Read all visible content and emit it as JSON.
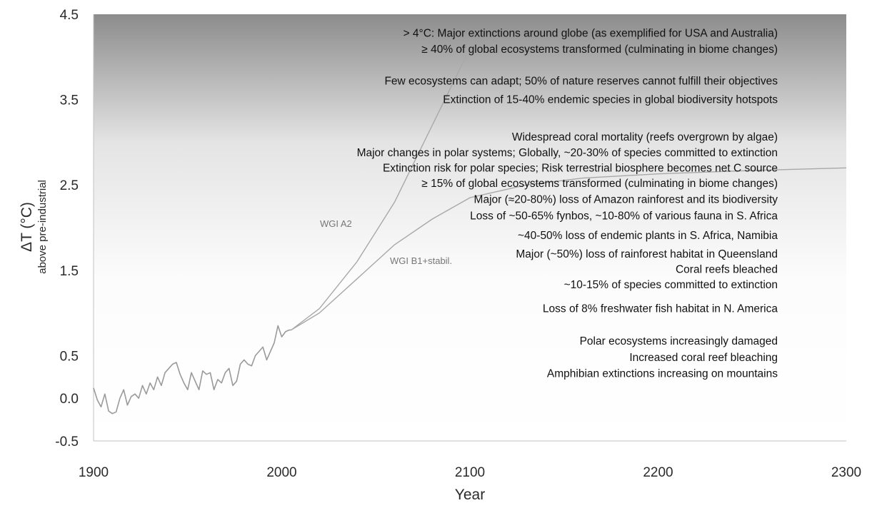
{
  "chart_data": {
    "type": "line",
    "xlabel": "Year",
    "ylabel": "ΔT (°C)",
    "ylabel_sub": "above pre-industrial",
    "xlim": [
      1900,
      2300
    ],
    "ylim": [
      -0.5,
      4.5
    ],
    "x_ticks": [
      "1900",
      "2000",
      "2100",
      "2200",
      "2300"
    ],
    "y_ticks": [
      "4.5",
      "3.5",
      "2.5",
      "1.5",
      "0.5",
      "0.0",
      "-0.5"
    ],
    "y_tick_values": [
      4.5,
      3.5,
      2.5,
      1.5,
      0.5,
      0.0,
      -0.5
    ],
    "x_tick_values": [
      1900,
      2000,
      2100,
      2200,
      2300
    ],
    "grid": false,
    "background": "vertical gradient, grey at top fading to white",
    "series": [
      {
        "role": "observed",
        "x": [
          1900,
          1902,
          1904,
          1906,
          1908,
          1910,
          1912,
          1914,
          1916,
          1918,
          1920,
          1922,
          1924,
          1926,
          1928,
          1930,
          1932,
          1934,
          1936,
          1938,
          1940,
          1942,
          1944,
          1946,
          1948,
          1950,
          1952,
          1954,
          1956,
          1958,
          1960,
          1962,
          1964,
          1966,
          1968,
          1970,
          1972,
          1974,
          1976,
          1978,
          1980,
          1982,
          1984,
          1986,
          1988,
          1990,
          1992,
          1994,
          1996,
          1998,
          2000,
          2002,
          2004,
          2005
        ],
        "y": [
          0.12,
          -0.02,
          -0.1,
          0.05,
          -0.15,
          -0.18,
          -0.16,
          0.0,
          0.1,
          -0.08,
          0.02,
          0.05,
          0.0,
          0.15,
          0.05,
          0.18,
          0.1,
          0.25,
          0.15,
          0.3,
          0.35,
          0.4,
          0.42,
          0.28,
          0.18,
          0.1,
          0.3,
          0.2,
          0.1,
          0.32,
          0.28,
          0.3,
          0.1,
          0.22,
          0.18,
          0.3,
          0.35,
          0.15,
          0.2,
          0.4,
          0.45,
          0.4,
          0.38,
          0.5,
          0.55,
          0.6,
          0.45,
          0.55,
          0.65,
          0.85,
          0.72,
          0.78,
          0.8,
          0.8
        ]
      },
      {
        "name": "WGI A2",
        "x": [
          2005,
          2020,
          2040,
          2060,
          2080,
          2100
        ],
        "y": [
          0.8,
          1.05,
          1.6,
          2.3,
          3.2,
          4.1
        ]
      },
      {
        "name": "WGI B1+stabil.",
        "x": [
          2005,
          2020,
          2040,
          2060,
          2080,
          2100,
          2130,
          2160,
          2200,
          2250,
          2300
        ],
        "y": [
          0.8,
          1.0,
          1.4,
          1.8,
          2.1,
          2.35,
          2.5,
          2.58,
          2.63,
          2.67,
          2.7
        ]
      }
    ],
    "annotations": [
      {
        "text": "> 4°C: Major extinctions around globe (as exemplified for USA and Australia)",
        "y": 4.28
      },
      {
        "text": "≥ 40% of global ecosystems transformed (culminating in biome changes)",
        "y": 4.09
      },
      {
        "text": "Few ecosystems can adapt;  50% of nature reserves cannot fulfill their objectives",
        "y": 3.72
      },
      {
        "text": "Extinction of 15-40% endemic species in global biodiversity hotspots",
        "y": 3.5
      },
      {
        "text": "Widespread coral mortality (reefs overgrown by algae)",
        "y": 3.06
      },
      {
        "text": "Major changes in polar systems;  Globally, ~20-30% of species committed to extinction",
        "y": 2.88
      },
      {
        "text": "Extinction risk for polar species;  Risk terrestrial biosphere becomes net C source",
        "y": 2.7
      },
      {
        "text": "≥ 15% of global ecosystems transformed (culminating in biome changes)",
        "y": 2.52
      },
      {
        "text": "Major (≈20-80%) loss of Amazon rainforest and its biodiversity",
        "y": 2.33
      },
      {
        "text": "Loss of ~50-65% fynbos, ~10-80% of various fauna in S. Africa",
        "y": 2.14
      },
      {
        "text": "~40-50% loss of endemic plants in S. Africa, Namibia",
        "y": 1.91
      },
      {
        "text": "Major (~50%) loss of rainforest habitat in Queensland",
        "y": 1.69
      },
      {
        "text": "Coral reefs bleached",
        "y": 1.51
      },
      {
        "text": "~10-15% of species committed to extinction",
        "y": 1.33
      },
      {
        "text": "Loss of 8% freshwater fish habitat in N. America",
        "y": 1.05
      },
      {
        "text": "Polar ecosystems increasingly damaged",
        "y": 0.67
      },
      {
        "text": "Increased coral reef bleaching",
        "y": 0.48
      },
      {
        "text": "Amphibian extinctions increasing on mountains",
        "y": 0.29
      }
    ],
    "colors": {
      "gradient_top": "#8c8c8c",
      "gradient_bottom": "#ffffff",
      "observed_line": "#9a9a9a",
      "scenario_line": "#a8a8a8",
      "axis": "#bbbbbb",
      "text": "#111111"
    }
  }
}
